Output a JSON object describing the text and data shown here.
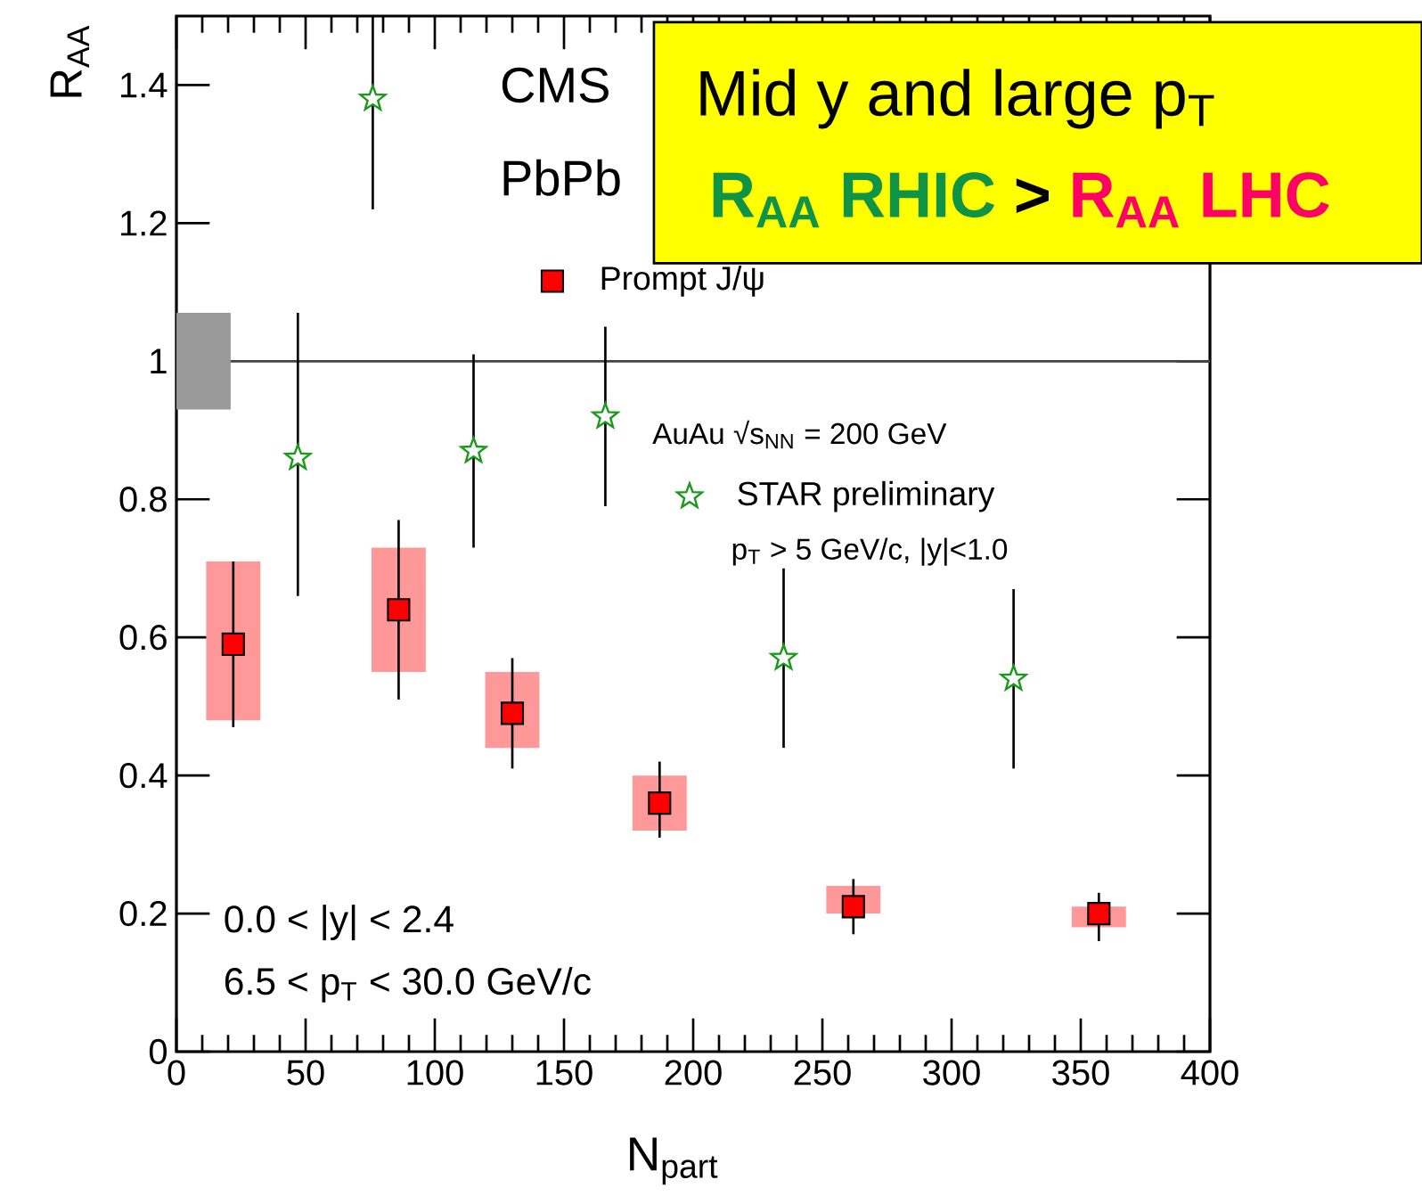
{
  "chart_data": {
    "type": "scatter",
    "xlabel": "N$_{part}$",
    "ylabel": "R$_{AA}$",
    "xlim": [
      0,
      400
    ],
    "ylim": [
      0,
      1.5
    ],
    "xticks": [
      0,
      {
        "value": 10,
        "label": null
      },
      {
        "value": 20,
        "label": null
      },
      {
        "value": 30,
        "label": null
      },
      {
        "value": 40,
        "label": null
      },
      50,
      {
        "value": 60,
        "label": null
      },
      {
        "value": 70,
        "label": null
      },
      {
        "value": 80,
        "label": null
      },
      {
        "value": 90,
        "label": null
      },
      100,
      {
        "value": 110,
        "label": null
      },
      {
        "value": 120,
        "label": null
      },
      {
        "value": 130,
        "label": null
      },
      {
        "value": 140,
        "label": null
      },
      150,
      {
        "value": 160,
        "label": null
      },
      {
        "value": 170,
        "label": null
      },
      {
        "value": 180,
        "label": null
      },
      {
        "value": 190,
        "label": null
      },
      200,
      {
        "value": 210,
        "label": null
      },
      {
        "value": 220,
        "label": null
      },
      {
        "value": 230,
        "label": null
      },
      {
        "value": 240,
        "label": null
      },
      250,
      {
        "value": 260,
        "label": null
      },
      {
        "value": 270,
        "label": null
      },
      {
        "value": 280,
        "label": null
      },
      {
        "value": 290,
        "label": null
      },
      300,
      {
        "value": 310,
        "label": null
      },
      {
        "value": 320,
        "label": null
      },
      {
        "value": 330,
        "label": null
      },
      {
        "value": 340,
        "label": null
      },
      350,
      {
        "value": 360,
        "label": null
      },
      {
        "value": 370,
        "label": null
      },
      {
        "value": 380,
        "label": null
      },
      {
        "value": 390,
        "label": null
      },
      400
    ],
    "yticks": [
      0,
      0.2,
      0.4,
      0.6,
      0.8,
      1,
      1.2,
      1.4
    ],
    "legend": "top right",
    "ref_lines": [
      {
        "axis": "y",
        "value": 1,
        "color": "#444444"
      }
    ],
    "annotations": [
      "CMS",
      "PbPb",
      "AuAu √s$_{NN}$ = 200 GeV",
      "p$_{T}$ > 5 GeV/c, |y|<1.0",
      "0.0 < |y| < 2.4",
      "6.5 < p$_{T}$ < 30.0 GeV/c",
      "Mid y and large p$_{T}$",
      "R$_{AA}$ RHIC",
      ">",
      "R$_{AA}$ LHC"
    ],
    "series": [
      {
        "type": "bar",
        "x": [
          10.5,
          22,
          86,
          130,
          187,
          262,
          357
        ],
        "base": [
          0.93,
          0.48,
          0.55,
          0.44,
          0.32,
          0.2,
          0.18
        ],
        "values": [
          0.14,
          0.23,
          0.18,
          0.11,
          0.08,
          0.04,
          0.03
        ],
        "colors": [
          "#999999",
          "#ff9999",
          "#ff9999",
          "#ff9999",
          "#ff9999",
          "#ff9999",
          "#ff9999"
        ]
      },
      {
        "name": "Prompt J/ψ",
        "marker": "square",
        "color": "#ff0000",
        "x": [
          22,
          86,
          130,
          187,
          262,
          357
        ],
        "values": [
          0.59,
          0.64,
          0.49,
          0.36,
          0.21,
          0.2
        ],
        "errors": [
          [
            0.47,
            0.71
          ],
          [
            0.51,
            0.77
          ],
          [
            0.41,
            0.57
          ],
          [
            0.31,
            0.42
          ],
          [
            0.17,
            0.25
          ],
          [
            0.16,
            0.23
          ]
        ]
      },
      {
        "name": "STAR preliminary",
        "marker": "star",
        "color": "#1a9a1a",
        "x": [
          47,
          76,
          115,
          166,
          235,
          324
        ],
        "values": [
          0.86,
          1.38,
          0.87,
          0.92,
          0.57,
          0.54
        ],
        "errors": [
          [
            0.66,
            1.07
          ],
          [
            1.22,
            1.5
          ],
          [
            0.73,
            1.01
          ],
          [
            0.79,
            1.05
          ],
          [
            0.44,
            0.7
          ],
          [
            0.41,
            0.67
          ]
        ]
      }
    ]
  }
}
